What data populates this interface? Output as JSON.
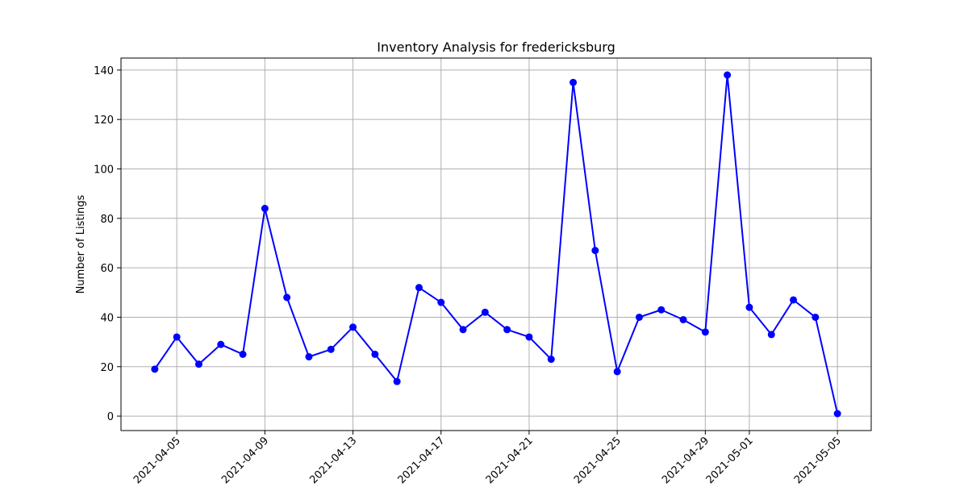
{
  "chart_data": {
    "type": "line",
    "title": "Inventory Analysis for fredericksburg",
    "xlabel": "",
    "ylabel": "Number of Listings",
    "x": [
      "2021-04-04",
      "2021-04-05",
      "2021-04-06",
      "2021-04-07",
      "2021-04-08",
      "2021-04-09",
      "2021-04-10",
      "2021-04-11",
      "2021-04-12",
      "2021-04-13",
      "2021-04-14",
      "2021-04-15",
      "2021-04-16",
      "2021-04-17",
      "2021-04-18",
      "2021-04-19",
      "2021-04-20",
      "2021-04-21",
      "2021-04-22",
      "2021-04-23",
      "2021-04-24",
      "2021-04-25",
      "2021-04-26",
      "2021-04-27",
      "2021-04-28",
      "2021-04-29",
      "2021-04-30",
      "2021-05-01",
      "2021-05-02",
      "2021-05-03",
      "2021-05-04",
      "2021-05-05"
    ],
    "series": [
      {
        "values": [
          19,
          32,
          21,
          29,
          25,
          84,
          48,
          24,
          27,
          36,
          25,
          14,
          52,
          46,
          35,
          42,
          35,
          32,
          23,
          135,
          67,
          18,
          40,
          43,
          39,
          34,
          138,
          44,
          33,
          47,
          40,
          1
        ],
        "color": "#0000ff",
        "marker": "circle"
      }
    ],
    "x_ticks": [
      "2021-04-05",
      "2021-04-09",
      "2021-04-13",
      "2021-04-17",
      "2021-04-21",
      "2021-04-25",
      "2021-04-29",
      "2021-05-01",
      "2021-05-05"
    ],
    "y_ticks": [
      0,
      20,
      40,
      60,
      80,
      100,
      120,
      140
    ],
    "xlim": [
      "2021-04-02T11:12:00",
      "2021-05-06T12:48:00"
    ],
    "ylim": [
      -5.85,
      144.85
    ],
    "grid": true,
    "grid_color": "#b0b0b0"
  }
}
